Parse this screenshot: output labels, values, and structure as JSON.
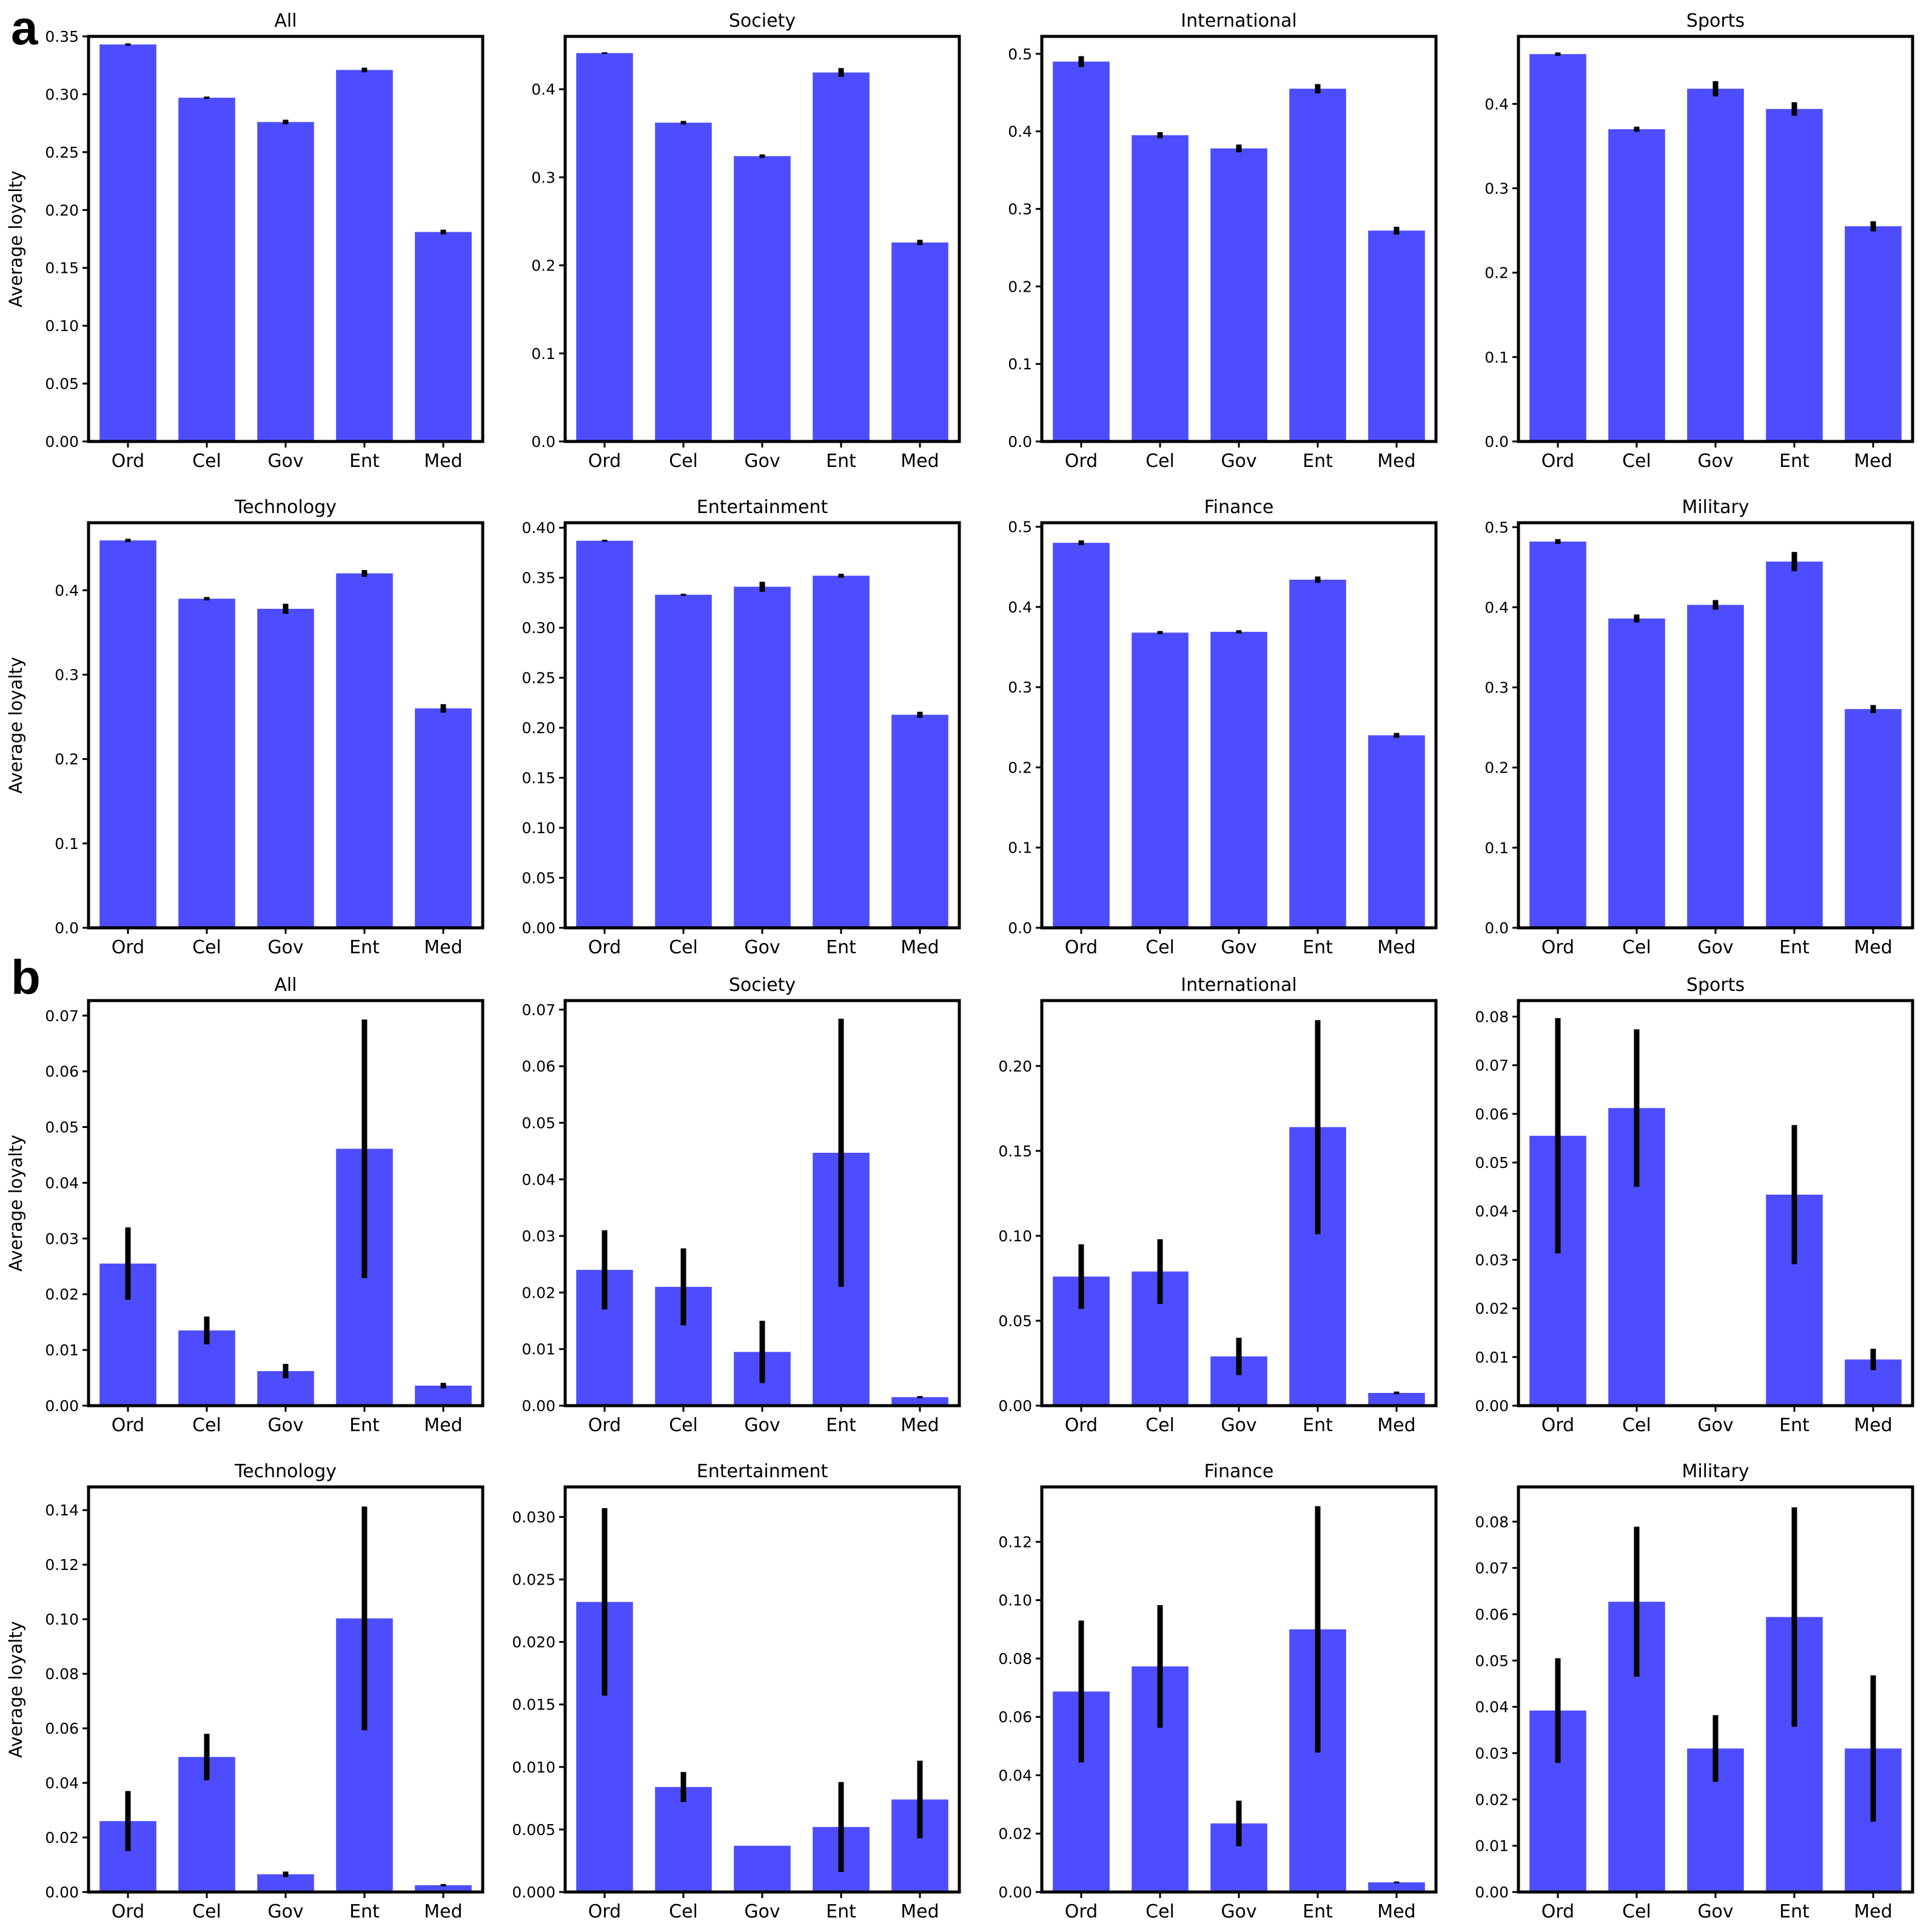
{
  "panels": {
    "a": "a",
    "b": "b"
  },
  "chart_data": [
    {
      "type": "bar",
      "title": "All",
      "ylabel": "Average loyalty",
      "categories": [
        "Ord",
        "Cel",
        "Gov",
        "Ent",
        "Med"
      ],
      "values": [
        0.343,
        0.297,
        0.276,
        0.321,
        0.181
      ],
      "errors": [
        0.001,
        0.001,
        0.002,
        0.002,
        0.002
      ],
      "ylim": [
        0,
        0.35
      ],
      "yticks": [
        0.0,
        0.05,
        0.1,
        0.15,
        0.2,
        0.25,
        0.3,
        0.35
      ],
      "ytick_labels": [
        "0.00",
        "0.05",
        "0.10",
        "0.15",
        "0.20",
        "0.25",
        "0.30",
        "0.35"
      ],
      "color": "#4d4dff"
    },
    {
      "type": "bar",
      "title": "Society",
      "ylabel": "",
      "categories": [
        "Ord",
        "Cel",
        "Gov",
        "Ent",
        "Med"
      ],
      "values": [
        0.441,
        0.362,
        0.324,
        0.419,
        0.226
      ],
      "errors": [
        0.001,
        0.002,
        0.002,
        0.005,
        0.003
      ],
      "ylim": [
        0,
        0.46
      ],
      "yticks": [
        0,
        0.1,
        0.2,
        0.3,
        0.4
      ],
      "ytick_labels": [
        "0.0",
        "0.1",
        "0.2",
        "0.3",
        "0.4"
      ],
      "color": "#4d4dff"
    },
    {
      "type": "bar",
      "title": "International",
      "ylabel": "",
      "categories": [
        "Ord",
        "Cel",
        "Gov",
        "Ent",
        "Med"
      ],
      "values": [
        0.49,
        0.395,
        0.378,
        0.455,
        0.272
      ],
      "errors": [
        0.007,
        0.004,
        0.005,
        0.006,
        0.005
      ],
      "ylim": [
        0,
        0.5225
      ],
      "yticks": [
        0,
        0.1,
        0.2,
        0.3,
        0.4,
        0.5
      ],
      "ytick_labels": [
        "0.0",
        "0.1",
        "0.2",
        "0.3",
        "0.4",
        "0.5"
      ],
      "color": "#4d4dff"
    },
    {
      "type": "bar",
      "title": "Sports",
      "ylabel": "",
      "categories": [
        "Ord",
        "Cel",
        "Gov",
        "Ent",
        "Med"
      ],
      "values": [
        0.459,
        0.37,
        0.418,
        0.394,
        0.255
      ],
      "errors": [
        0.002,
        0.003,
        0.009,
        0.008,
        0.006
      ],
      "ylim": [
        0,
        0.48
      ],
      "yticks": [
        0,
        0.1,
        0.2,
        0.3,
        0.4
      ],
      "ytick_labels": [
        "0.0",
        "0.1",
        "0.2",
        "0.3",
        "0.4"
      ],
      "color": "#4d4dff"
    },
    {
      "type": "bar",
      "title": "Technology",
      "ylabel": "Average loyalty",
      "categories": [
        "Ord",
        "Cel",
        "Gov",
        "Ent",
        "Med"
      ],
      "values": [
        0.459,
        0.39,
        0.378,
        0.42,
        0.26
      ],
      "errors": [
        0.002,
        0.002,
        0.006,
        0.004,
        0.005
      ],
      "ylim": [
        0,
        0.48
      ],
      "yticks": [
        0,
        0.1,
        0.2,
        0.3,
        0.4
      ],
      "ytick_labels": [
        "0.0",
        "0.1",
        "0.2",
        "0.3",
        "0.4"
      ],
      "color": "#4d4dff"
    },
    {
      "type": "bar",
      "title": "Entertainment",
      "ylabel": "",
      "categories": [
        "Ord",
        "Cel",
        "Gov",
        "Ent",
        "Med"
      ],
      "values": [
        0.387,
        0.333,
        0.341,
        0.352,
        0.213
      ],
      "errors": [
        0.001,
        0.001,
        0.005,
        0.002,
        0.003
      ],
      "ylim": [
        0,
        0.405
      ],
      "yticks": [
        0,
        0.05,
        0.1,
        0.15,
        0.2,
        0.25,
        0.3,
        0.35,
        0.4
      ],
      "ytick_labels": [
        "0.00",
        "0.05",
        "0.10",
        "0.15",
        "0.20",
        "0.25",
        "0.30",
        "0.35",
        "0.40"
      ],
      "color": "#4d4dff"
    },
    {
      "type": "bar",
      "title": "Finance",
      "ylabel": "",
      "categories": [
        "Ord",
        "Cel",
        "Gov",
        "Ent",
        "Med"
      ],
      "values": [
        0.48,
        0.368,
        0.369,
        0.434,
        0.24
      ],
      "errors": [
        0.003,
        0.002,
        0.002,
        0.004,
        0.003
      ],
      "ylim": [
        0,
        0.505
      ],
      "yticks": [
        0,
        0.1,
        0.2,
        0.3,
        0.4,
        0.5
      ],
      "ytick_labels": [
        "0.0",
        "0.1",
        "0.2",
        "0.3",
        "0.4",
        "0.5"
      ],
      "color": "#4d4dff"
    },
    {
      "type": "bar",
      "title": "Military",
      "ylabel": "",
      "categories": [
        "Ord",
        "Cel",
        "Gov",
        "Ent",
        "Med"
      ],
      "values": [
        0.482,
        0.386,
        0.403,
        0.457,
        0.273
      ],
      "errors": [
        0.003,
        0.005,
        0.006,
        0.012,
        0.005
      ],
      "ylim": [
        0,
        0.5055
      ],
      "yticks": [
        0,
        0.1,
        0.2,
        0.3,
        0.4,
        0.5
      ],
      "ytick_labels": [
        "0.0",
        "0.1",
        "0.2",
        "0.3",
        "0.4",
        "0.5"
      ],
      "color": "#4d4dff"
    },
    {
      "type": "bar",
      "title": "All",
      "ylabel": "Average loyalty",
      "categories": [
        "Ord",
        "Cel",
        "Gov",
        "Ent",
        "Med"
      ],
      "values": [
        0.0255,
        0.0135,
        0.0062,
        0.0461,
        0.0036
      ],
      "errors": [
        0.0065,
        0.0025,
        0.0013,
        0.0232,
        0.0005
      ],
      "ylim": [
        0,
        0.0727
      ],
      "yticks": [
        0,
        0.01,
        0.02,
        0.03,
        0.04,
        0.05,
        0.06,
        0.07
      ],
      "ytick_labels": [
        "0.00",
        "0.01",
        "0.02",
        "0.03",
        "0.04",
        "0.05",
        "0.06",
        "0.07"
      ],
      "color": "#4d4dff"
    },
    {
      "type": "bar",
      "title": "Society",
      "ylabel": "",
      "categories": [
        "Ord",
        "Cel",
        "Gov",
        "Ent",
        "Med"
      ],
      "values": [
        0.024,
        0.021,
        0.0095,
        0.0447,
        0.0015
      ],
      "errors": [
        0.007,
        0.0068,
        0.0055,
        0.0237,
        0.0002
      ],
      "ylim": [
        0,
        0.0716
      ],
      "yticks": [
        0,
        0.01,
        0.02,
        0.03,
        0.04,
        0.05,
        0.06,
        0.07
      ],
      "ytick_labels": [
        "0.00",
        "0.01",
        "0.02",
        "0.03",
        "0.04",
        "0.05",
        "0.06",
        "0.07"
      ],
      "color": "#4d4dff"
    },
    {
      "type": "bar",
      "title": "International",
      "ylabel": "",
      "categories": [
        "Ord",
        "Cel",
        "Gov",
        "Ent",
        "Med"
      ],
      "values": [
        0.076,
        0.079,
        0.029,
        0.164,
        0.0075
      ],
      "errors": [
        0.019,
        0.019,
        0.011,
        0.063,
        0.0008
      ],
      "ylim": [
        0,
        0.2385
      ],
      "yticks": [
        0,
        0.05,
        0.1,
        0.15,
        0.2
      ],
      "ytick_labels": [
        "0.00",
        "0.05",
        "0.10",
        "0.15",
        "0.20"
      ],
      "color": "#4d4dff"
    },
    {
      "type": "bar",
      "title": "Sports",
      "ylabel": "",
      "categories": [
        "Ord",
        "Cel",
        "Gov",
        "Ent",
        "Med"
      ],
      "values": [
        0.0555,
        0.0612,
        0,
        0.0434,
        0.0095
      ],
      "errors": [
        0.0242,
        0.0162,
        0,
        0.0143,
        0.0022
      ],
      "ylim": [
        0,
        0.0833
      ],
      "yticks": [
        0,
        0.01,
        0.02,
        0.03,
        0.04,
        0.05,
        0.06,
        0.07,
        0.08
      ],
      "ytick_labels": [
        "0.00",
        "0.01",
        "0.02",
        "0.03",
        "0.04",
        "0.05",
        "0.06",
        "0.07",
        "0.08"
      ],
      "color": "#4d4dff"
    },
    {
      "type": "bar",
      "title": "Technology",
      "ylabel": "Average loyalty",
      "categories": [
        "Ord",
        "Cel",
        "Gov",
        "Ent",
        "Med"
      ],
      "values": [
        0.026,
        0.0495,
        0.0065,
        0.1003,
        0.0025
      ],
      "errors": [
        0.011,
        0.0085,
        0.001,
        0.041,
        0.0004
      ],
      "ylim": [
        0,
        0.1485
      ],
      "yticks": [
        0,
        0.02,
        0.04,
        0.06,
        0.08,
        0.1,
        0.12,
        0.14
      ],
      "ytick_labels": [
        "0.00",
        "0.02",
        "0.04",
        "0.06",
        "0.08",
        "0.10",
        "0.12",
        "0.14"
      ],
      "color": "#4d4dff"
    },
    {
      "type": "bar",
      "title": "Entertainment",
      "ylabel": "",
      "categories": [
        "Ord",
        "Cel",
        "Gov",
        "Ent",
        "Med"
      ],
      "values": [
        0.0232,
        0.0084,
        0.0037,
        0.0052,
        0.0074
      ],
      "errors": [
        0.0075,
        0.0012,
        0,
        0.0036,
        0.0031
      ],
      "ylim": [
        0,
        0.0324
      ],
      "yticks": [
        0,
        0.005,
        0.01,
        0.015,
        0.02,
        0.025,
        0.03
      ],
      "ytick_labels": [
        "0.000",
        "0.005",
        "0.010",
        "0.015",
        "0.020",
        "0.025",
        "0.030"
      ],
      "color": "#4d4dff"
    },
    {
      "type": "bar",
      "title": "Finance",
      "ylabel": "",
      "categories": [
        "Ord",
        "Cel",
        "Gov",
        "Ent",
        "Med"
      ],
      "values": [
        0.0687,
        0.0773,
        0.0235,
        0.09,
        0.0033
      ],
      "errors": [
        0.0243,
        0.021,
        0.0078,
        0.0422,
        0.0003
      ],
      "ylim": [
        0,
        0.1388
      ],
      "yticks": [
        0,
        0.02,
        0.04,
        0.06,
        0.08,
        0.1,
        0.12
      ],
      "ytick_labels": [
        "0.00",
        "0.02",
        "0.04",
        "0.06",
        "0.08",
        "0.10",
        "0.12"
      ],
      "color": "#4d4dff"
    },
    {
      "type": "bar",
      "title": "Military",
      "ylabel": "",
      "categories": [
        "Ord",
        "Cel",
        "Gov",
        "Ent",
        "Med"
      ],
      "values": [
        0.0392,
        0.0627,
        0.031,
        0.0594,
        0.031
      ],
      "errors": [
        0.0113,
        0.0162,
        0.0072,
        0.0237,
        0.0158
      ],
      "ylim": [
        0,
        0.0875
      ],
      "yticks": [
        0,
        0.01,
        0.02,
        0.03,
        0.04,
        0.05,
        0.06,
        0.07,
        0.08
      ],
      "ytick_labels": [
        "0.00",
        "0.01",
        "0.02",
        "0.03",
        "0.04",
        "0.05",
        "0.06",
        "0.07",
        "0.08"
      ],
      "color": "#4d4dff"
    }
  ]
}
